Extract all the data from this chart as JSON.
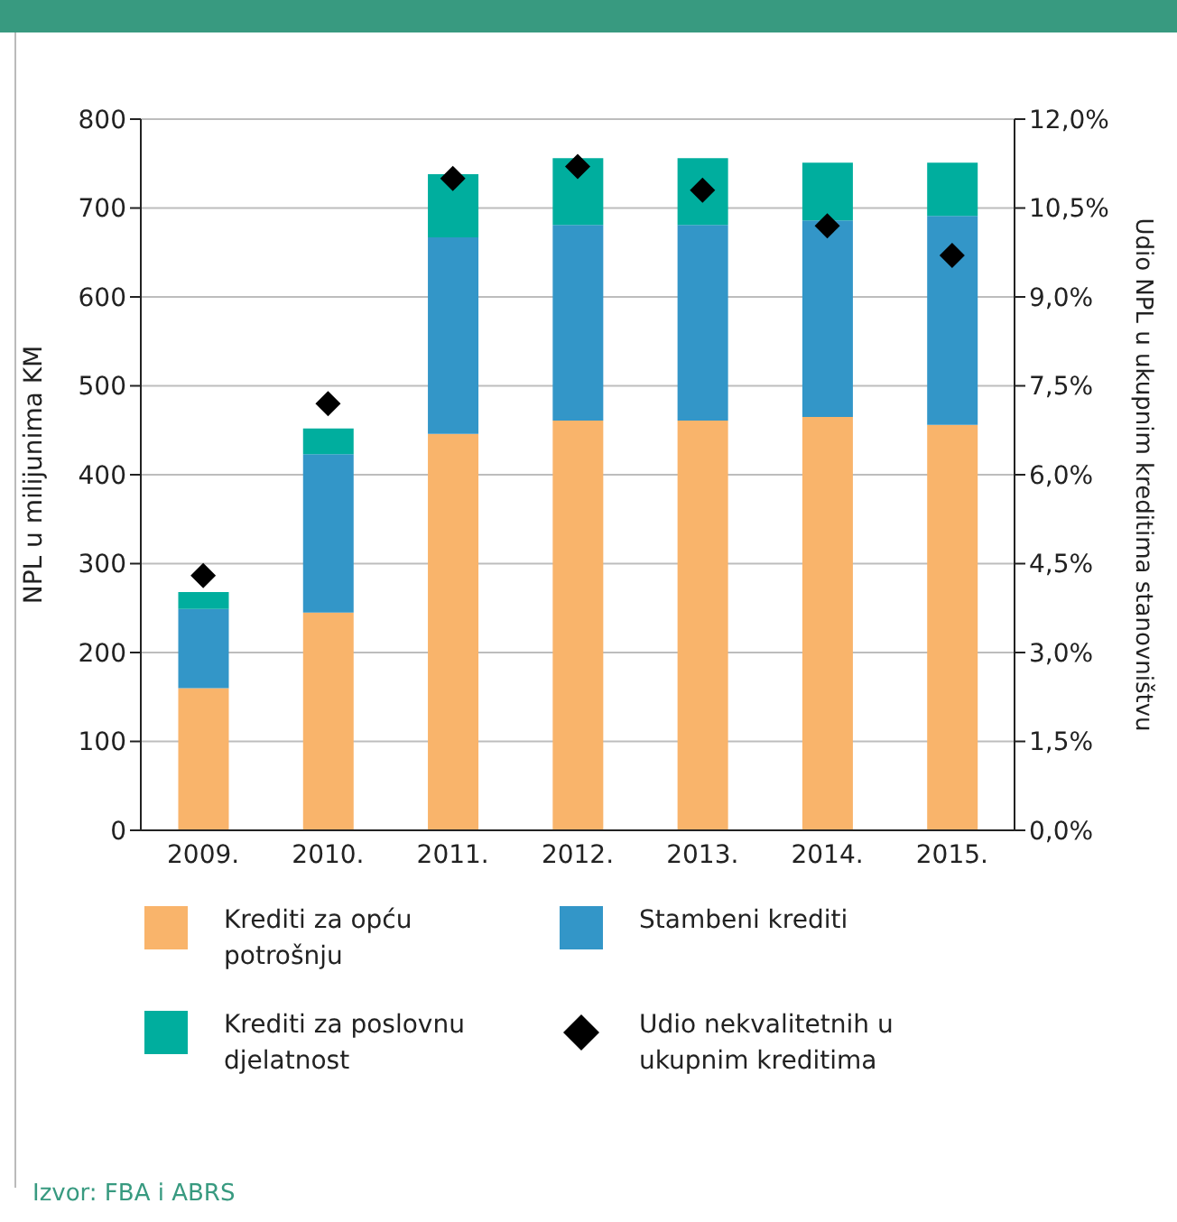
{
  "chart_data": {
    "type": "bar",
    "stacked": true,
    "categories": [
      "2009.",
      "2010.",
      "2011.",
      "2012.",
      "2013.",
      "2014.",
      "2015."
    ],
    "ylabel": "NPL u milijunima KM",
    "y2label": "Udio NPL u ukupnim kreditima stanovništvu",
    "ylim": [
      0,
      800
    ],
    "yticks": [
      0,
      100,
      200,
      300,
      400,
      500,
      600,
      700,
      800
    ],
    "y2lim": [
      0,
      12
    ],
    "y2ticks": [
      {
        "value": 0,
        "label": "0,0%"
      },
      {
        "value": 1.5,
        "label": "1,5%"
      },
      {
        "value": 3,
        "label": "3,0%"
      },
      {
        "value": 4.5,
        "label": "4,5%"
      },
      {
        "value": 6,
        "label": "6,0%"
      },
      {
        "value": 7.5,
        "label": "7,5%"
      },
      {
        "value": 9,
        "label": "9,0%"
      },
      {
        "value": 10.5,
        "label": "10,5%"
      },
      {
        "value": 12,
        "label": "12,0%"
      }
    ],
    "grid": "y",
    "legend": "bottom",
    "series": [
      {
        "name": "Krediti za opću potrošnju",
        "color": "#f9b46b",
        "values": [
          160,
          245,
          446,
          461,
          461,
          465,
          456
        ]
      },
      {
        "name": "Stambeni krediti",
        "color": "#3396c8",
        "values": [
          89,
          178,
          221,
          220,
          220,
          221,
          235
        ]
      },
      {
        "name": "Krediti za poslovnu djelatnost",
        "color": "#00ae9e",
        "values": [
          19,
          29,
          71,
          75,
          75,
          65,
          60
        ]
      },
      {
        "name": "Udio nekvalitetnih u ukupnim kreditima",
        "type": "scatter",
        "axis": "y2",
        "marker": "diamond",
        "color": "#000000",
        "values": [
          4.3,
          7.2,
          11.0,
          11.2,
          10.8,
          10.2,
          9.7
        ]
      }
    ],
    "annotations": [
      "Izvor: FBA i ABRS"
    ]
  }
}
